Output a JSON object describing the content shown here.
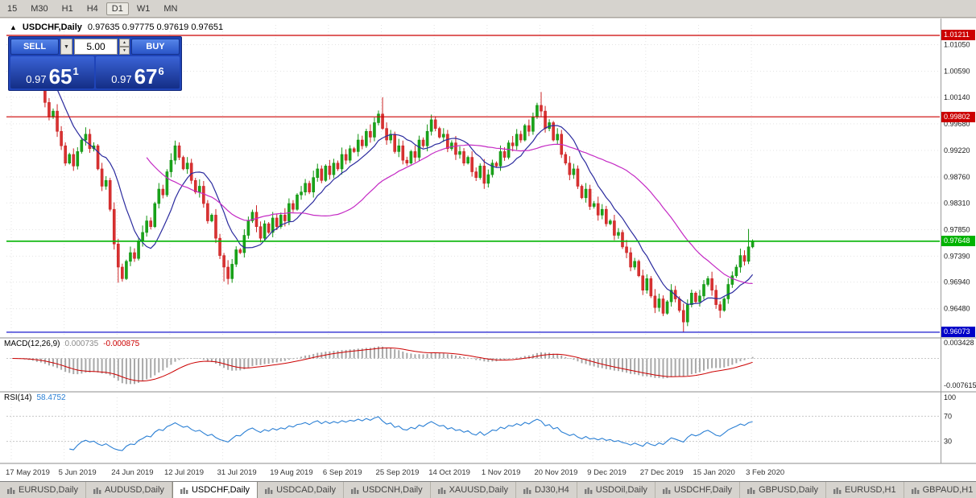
{
  "toolbar": {
    "periods": [
      "15",
      "M30",
      "H1",
      "H4",
      "D1",
      "W1",
      "MN"
    ],
    "active_period": "D1"
  },
  "icons": {
    "dropdown": "▼",
    "spin_up": "▲",
    "spin_down": "▼",
    "caption_chart": "▲"
  },
  "caption": {
    "symbol": "USDCHF,Daily",
    "ohlc": "0.97635 0.97775 0.97619 0.97651"
  },
  "trade_panel": {
    "sell_label": "SELL",
    "buy_label": "BUY",
    "volume": "5.00",
    "sell_price": {
      "big": "0.97",
      "mid": "65",
      "sup": "1"
    },
    "buy_price": {
      "big": "0.97",
      "mid": "67",
      "sup": "6"
    }
  },
  "macd_panel": {
    "name": "MACD(12,26,9)",
    "main_value": "0.000735",
    "signal_value": "-0.000875",
    "axis_max": "0.003428",
    "axis_min": "-0.007615"
  },
  "rsi_panel": {
    "name": "RSI(14)",
    "value": "58.4752",
    "axis_labels": [
      "100",
      "70",
      "30"
    ]
  },
  "tabs": {
    "active_index": 2,
    "items": [
      "EURUSD,Daily",
      "AUDUSD,Daily",
      "USDCHF,Daily",
      "USDCAD,Daily",
      "USDCNH,Daily",
      "XAUUSD,Daily",
      "DJ30,H4",
      "USDOil,Daily",
      "USDCHF,Daily",
      "GBPUSD,Daily",
      "EURUSD,H1",
      "GBPAUD,H1"
    ]
  },
  "chart_data": {
    "type": "candlestick",
    "title": "USDCHF,Daily",
    "ylim": [
      0.9603,
      1.01392
    ],
    "y_tick_labels": [
      "1.01050",
      "1.00590",
      "1.00140",
      "0.99680",
      "0.99220",
      "0.98760",
      "0.98310",
      "0.97850",
      "0.97390",
      "0.96940",
      "0.96480"
    ],
    "x_tick_labels": [
      "17 May 2019",
      "5 Jun 2019",
      "24 Jun 2019",
      "12 Jul 2019",
      "31 Jul 2019",
      "19 Aug 2019",
      "6 Sep 2019",
      "25 Sep 2019",
      "14 Oct 2019",
      "1 Nov 2019",
      "20 Nov 2019",
      "9 Dec 2019",
      "27 Dec 2019",
      "15 Jan 2020",
      "3 Feb 2020"
    ],
    "bars_per_tick": 13,
    "first_open": 1.01,
    "closes": [
      1.0095,
      1.008,
      1.009,
      1.0065,
      1.007,
      1.005,
      1.003,
      1.004,
      1.0005,
      0.998,
      0.999,
      0.9955,
      0.993,
      0.99,
      0.9915,
      0.9895,
      0.992,
      0.994,
      0.995,
      0.9925,
      0.993,
      0.989,
      0.986,
      0.987,
      0.982,
      0.976,
      0.972,
      0.97,
      0.973,
      0.9745,
      0.9735,
      0.9765,
      0.978,
      0.98,
      0.979,
      0.983,
      0.9855,
      0.9845,
      0.9885,
      0.9905,
      0.993,
      0.991,
      0.989,
      0.99,
      0.987,
      0.985,
      0.986,
      0.983,
      0.98,
      0.981,
      0.977,
      0.974,
      0.972,
      0.97,
      0.9725,
      0.975,
      0.9745,
      0.9775,
      0.98,
      0.9815,
      0.979,
      0.977,
      0.9795,
      0.978,
      0.9805,
      0.979,
      0.981,
      0.98,
      0.983,
      0.982,
      0.9845,
      0.985,
      0.9865,
      0.985,
      0.9875,
      0.989,
      0.987,
      0.9895,
      0.988,
      0.99,
      0.989,
      0.9915,
      0.9905,
      0.9925,
      0.992,
      0.994,
      0.993,
      0.9955,
      0.9945,
      0.997,
      0.9985,
      0.996,
      0.994,
      0.995,
      0.992,
      0.993,
      0.9905,
      0.99,
      0.992,
      0.991,
      0.994,
      0.993,
      0.9955,
      0.9975,
      0.996,
      0.9945,
      0.995,
      0.9925,
      0.9935,
      0.9915,
      0.992,
      0.99,
      0.991,
      0.9885,
      0.9875,
      0.9895,
      0.9865,
      0.988,
      0.99,
      0.9895,
      0.992,
      0.991,
      0.9935,
      0.993,
      0.995,
      0.994,
      0.9965,
      0.9955,
      0.998,
      1.0,
      0.999,
      0.996,
      0.997,
      0.994,
      0.995,
      0.9915,
      0.99,
      0.988,
      0.989,
      0.986,
      0.984,
      0.9855,
      0.9825,
      0.983,
      0.981,
      0.982,
      0.9795,
      0.98,
      0.9775,
      0.978,
      0.9755,
      0.9745,
      0.972,
      0.973,
      0.9705,
      0.968,
      0.97,
      0.967,
      0.965,
      0.9665,
      0.964,
      0.966,
      0.968,
      0.9665,
      0.9645,
      0.9625,
      0.9655,
      0.9675,
      0.966,
      0.967,
      0.969,
      0.97,
      0.968,
      0.9655,
      0.9645,
      0.9665,
      0.969,
      0.9705,
      0.972,
      0.974,
      0.973,
      0.9755,
      0.9765
    ],
    "wick_overrides": {
      "1": {
        "h": 1.0102
      },
      "26": {
        "l": 0.9693
      },
      "27": {
        "l": 0.9695
      },
      "52": {
        "l": 0.9695
      },
      "53": {
        "l": 0.969
      },
      "91": {
        "h": 1.0014
      },
      "104": {
        "h": 0.9981
      },
      "130": {
        "h": 1.0023
      },
      "165": {
        "l": 0.9608
      },
      "174": {
        "l": 0.9632
      },
      "181": {
        "h": 0.9786
      }
    },
    "levels": [
      {
        "value": 1.01211,
        "label": "1.01211",
        "color": "#cc0000"
      },
      {
        "value": 0.99802,
        "label": "0.99802",
        "color": "#cc0000"
      },
      {
        "value": 0.97648,
        "label": "0.97648",
        "color": "#00b300"
      },
      {
        "value": 0.96073,
        "label": "0.96073",
        "color": "#0000c8"
      }
    ],
    "overlays": [
      {
        "name": "MA fast",
        "period": 10,
        "color": "#2a2a9e"
      },
      {
        "name": "MA slow",
        "period": 34,
        "color": "#c429c4"
      }
    ],
    "indicators": [
      {
        "type": "MACD",
        "params": [
          12,
          26,
          9
        ],
        "histogram_color": "#a8a8a8",
        "signal_color": "#cc0000"
      },
      {
        "type": "RSI",
        "params": [
          14
        ],
        "color": "#2a7fd4",
        "levels": [
          70,
          30
        ]
      }
    ]
  }
}
